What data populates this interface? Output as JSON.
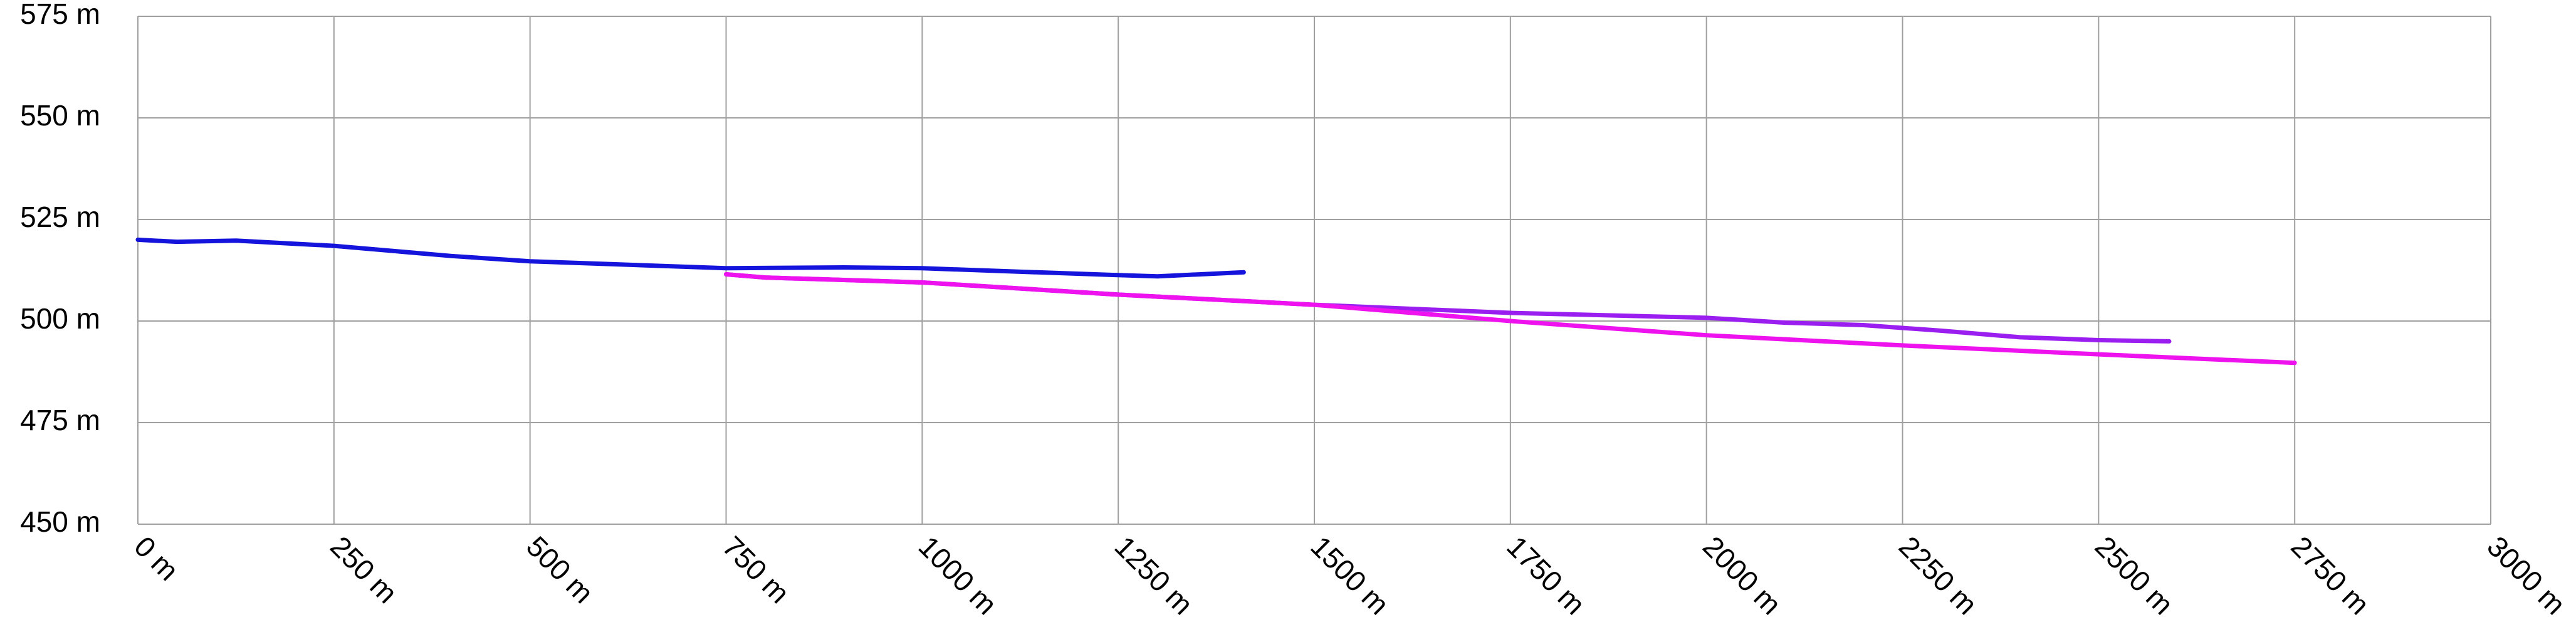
{
  "chart_data": {
    "type": "line",
    "xlim": [
      0,
      3000
    ],
    "xticks": [
      {
        "value": 0,
        "label": "0 m"
      },
      {
        "value": 250,
        "label": "250 m"
      },
      {
        "value": 500,
        "label": "500 m"
      },
      {
        "value": 750,
        "label": "750 m"
      },
      {
        "value": 1000,
        "label": "1000 m"
      },
      {
        "value": 1250,
        "label": "1250 m"
      },
      {
        "value": 1500,
        "label": "1500 m"
      },
      {
        "value": 1750,
        "label": "1750 m"
      },
      {
        "value": 2000,
        "label": "2000 m"
      },
      {
        "value": 2250,
        "label": "2250 m"
      },
      {
        "value": 2500,
        "label": "2500 m"
      },
      {
        "value": 2750,
        "label": "2750 m"
      },
      {
        "value": 3000,
        "label": "3000 m"
      }
    ],
    "ylim": [
      450,
      575
    ],
    "yticks": [
      {
        "value": 450,
        "label": "450 m"
      },
      {
        "value": 475,
        "label": "475 m"
      },
      {
        "value": 500,
        "label": "500 m"
      },
      {
        "value": 525,
        "label": "525 m"
      },
      {
        "value": 550,
        "label": "550 m"
      },
      {
        "value": 575,
        "label": "575 m"
      }
    ],
    "grid": true,
    "series": [
      {
        "color": "#1414dc",
        "x": [
          0,
          50,
          125,
          250,
          400,
          500,
          750,
          900,
          1000,
          1100,
          1250,
          1300,
          1410
        ],
        "values": [
          520,
          519.5,
          519.8,
          518.5,
          516,
          514.7,
          513,
          513.2,
          513,
          512.3,
          511.3,
          511,
          512
        ]
      },
      {
        "color": "#9a1ef0",
        "x": [
          750,
          800,
          1000,
          1250,
          1500,
          1750,
          2000,
          2100,
          2200,
          2300,
          2400,
          2500,
          2590
        ],
        "values": [
          511.5,
          510.7,
          509.5,
          506.5,
          504,
          502,
          500.8,
          499.6,
          499,
          497.6,
          496,
          495.3,
          495
        ]
      },
      {
        "color": "#ee12ee",
        "x": [
          750,
          800,
          1000,
          1250,
          1500,
          1750,
          2000,
          2250,
          2500,
          2750
        ],
        "values": [
          511.5,
          510.7,
          509.5,
          506.5,
          504,
          500,
          496.5,
          494,
          491.8,
          489.7
        ]
      }
    ]
  }
}
